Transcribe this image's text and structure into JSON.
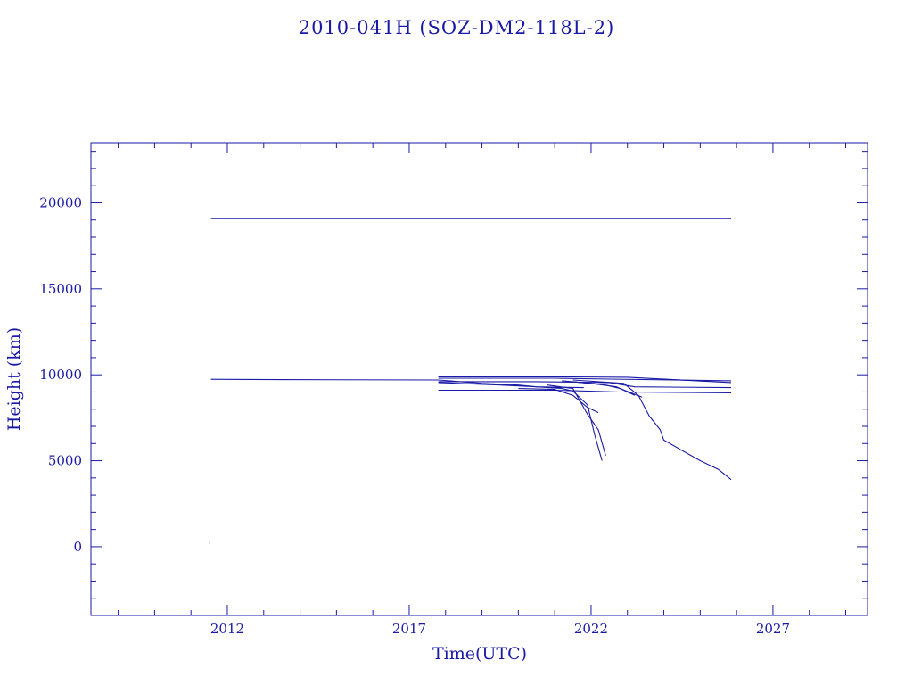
{
  "chart_data": {
    "type": "line",
    "title": "2010-041H (SOZ-DM2-118L-2)",
    "xlabel": "Time(UTC)",
    "ylabel": "Height (km)",
    "xlim": [
      2008.25,
      2029.6
    ],
    "ylim": [
      -4000,
      23500
    ],
    "x_ticks": [
      2012,
      2017,
      2022,
      2027
    ],
    "x_tick_labels": [
      "2012",
      "2017",
      "2022",
      "2027"
    ],
    "y_ticks": [
      0,
      5000,
      10000,
      15000,
      20000
    ],
    "y_tick_labels": [
      "0",
      "5000",
      "10000",
      "15000",
      "20000"
    ],
    "grid": false,
    "color": "#1a1aa6",
    "series": [
      {
        "x": [
          2011.55,
          2025.85
        ],
        "y": [
          19100,
          19100
        ]
      },
      {
        "x": [
          2011.55,
          2013.4,
          2017.8
        ],
        "y": [
          9740,
          9720,
          9700
        ]
      },
      {
        "x": [
          2017.8,
          2021.5,
          2023.0,
          2025.85
        ],
        "y": [
          9880,
          9880,
          9860,
          9550
        ]
      },
      {
        "x": [
          2017.8,
          2021.0,
          2022.5,
          2025.85
        ],
        "y": [
          9800,
          9800,
          9750,
          9650
        ]
      },
      {
        "x": [
          2017.8,
          2020.5,
          2022.5,
          2023.2,
          2025.85
        ],
        "y": [
          9600,
          9600,
          9550,
          9300,
          9250
        ]
      },
      {
        "x": [
          2017.8,
          2021.0,
          2022.8,
          2025.85
        ],
        "y": [
          9100,
          9100,
          9000,
          8950
        ]
      },
      {
        "x": [
          2017.8,
          2019.5,
          2020.5,
          2021.8
        ],
        "y": [
          9550,
          9400,
          9300,
          9250
        ]
      },
      {
        "x": [
          2017.8,
          2019.0,
          2020.0,
          2020.5,
          2021.2
        ],
        "y": [
          9700,
          9500,
          9400,
          9300,
          9200
        ]
      },
      {
        "x": [
          2020.0,
          2021.0,
          2021.5,
          2021.9,
          2022.2
        ],
        "y": [
          9200,
          9150,
          8800,
          8100,
          7800
        ]
      },
      {
        "x": [
          2021.0,
          2021.5,
          2021.9,
          2022.1,
          2022.3
        ],
        "y": [
          9300,
          9050,
          8250,
          6500,
          5000
        ]
      },
      {
        "x": [
          2020.8,
          2021.5,
          2021.9,
          2022.2,
          2022.4
        ],
        "y": [
          9400,
          9200,
          7700,
          6800,
          5300
        ]
      },
      {
        "x": [
          2021.2,
          2022.0,
          2022.7,
          2023.2
        ],
        "y": [
          9650,
          9500,
          9300,
          8800
        ]
      },
      {
        "x": [
          2021.5,
          2022.4,
          2022.8,
          2023.4
        ],
        "y": [
          9600,
          9400,
          9200,
          8700
        ]
      },
      {
        "x": [
          2021.5,
          2022.9,
          2023.3,
          2023.6,
          2023.9,
          2024.0,
          2024.5,
          2025.0,
          2025.5,
          2025.85
        ],
        "y": [
          9700,
          9500,
          8800,
          7600,
          6800,
          6200,
          5600,
          5000,
          4500,
          3900
        ]
      },
      {
        "x": [
          2011.52,
          2011.52
        ],
        "y": [
          150,
          300
        ]
      }
    ]
  }
}
